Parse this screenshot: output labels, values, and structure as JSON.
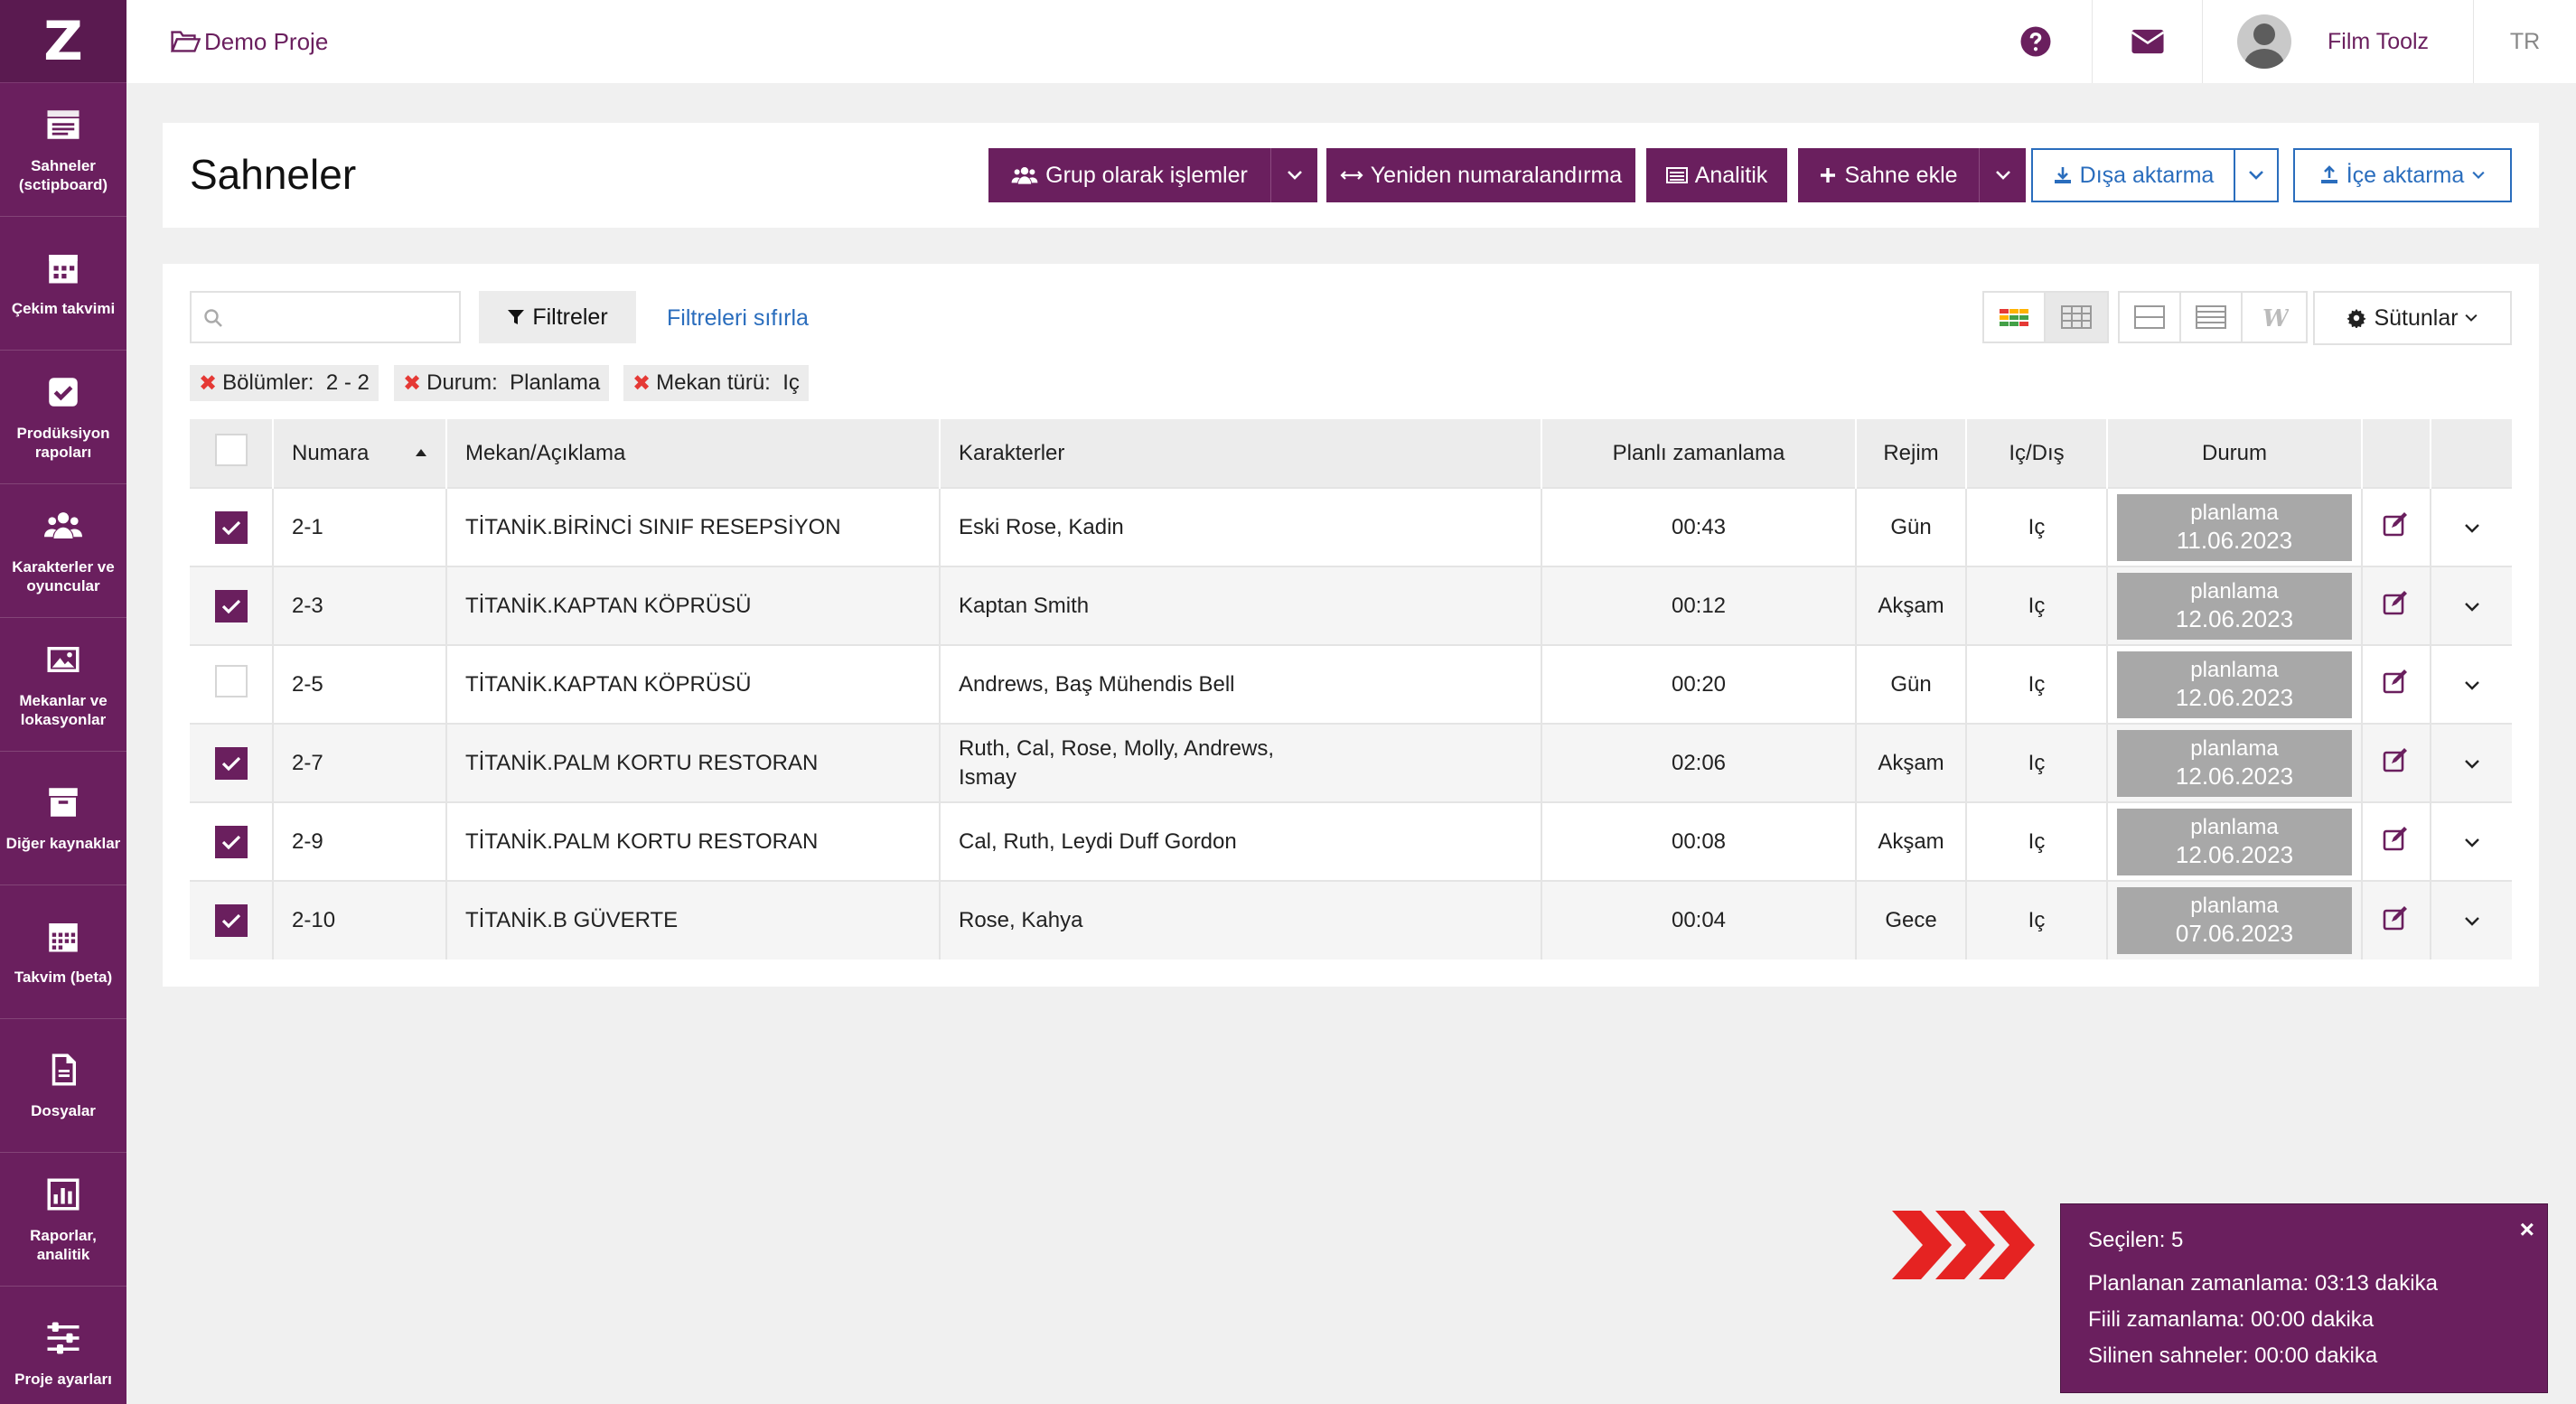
{
  "sidebar": {
    "logo": "Z",
    "items": [
      {
        "label": "Sahneler (sctipboard)",
        "icon": "clapperboard-icon"
      },
      {
        "label": "Çekim takvimi",
        "icon": "calendar-icon"
      },
      {
        "label": "Prodüksiyon rapoları",
        "icon": "checkbox-icon"
      },
      {
        "label": "Karakterler ve oyuncular",
        "icon": "users-icon"
      },
      {
        "label": "Mekanlar ve lokasyonlar",
        "icon": "image-icon"
      },
      {
        "label": "Diğer kaynaklar",
        "icon": "archive-icon"
      },
      {
        "label": "Takvim (beta)",
        "icon": "calendar-grid-icon"
      },
      {
        "label": "Dosyalar",
        "icon": "file-icon"
      },
      {
        "label": "Raporlar, analitik",
        "icon": "bar-chart-icon"
      },
      {
        "label": "Proje ayarları",
        "icon": "sliders-icon"
      }
    ]
  },
  "topbar": {
    "project": "Demo Proje",
    "user": "Film Toolz",
    "lang": "TR"
  },
  "header": {
    "title": "Sahneler",
    "group_ops": "Grup olarak işlemler",
    "renumber": "Yeniden numaralandırma",
    "analytics": "Analitik",
    "add_scene": "Sahne ekle",
    "export": "Dışa aktarma",
    "import": "İçe aktarma"
  },
  "toolbar": {
    "search_placeholder": "",
    "filters": "Filtreler",
    "reset_filters": "Filtreleri sıfırla",
    "columns": "Sütunlar"
  },
  "chips": [
    {
      "label": "Bölümler:",
      "value": "2 - 2"
    },
    {
      "label": "Durum:",
      "value": "Planlama"
    },
    {
      "label": "Mekan türü:",
      "value": "Iç"
    }
  ],
  "table": {
    "headers": {
      "number": "Numara",
      "location": "Mekan/Açıklama",
      "characters": "Karakterler",
      "planned": "Planlı zamanlama",
      "mode": "Rejim",
      "inout": "Iç/Dış",
      "status": "Durum"
    },
    "rows": [
      {
        "checked": true,
        "number": "2-1",
        "location": "TİTANİK.BİRİNCİ SINIF RESEPSİYON",
        "characters": "Eski Rose, Kadin",
        "planned": "00:43",
        "mode": "Gün",
        "inout": "Iç",
        "status": "planlama",
        "date": "11.06.2023"
      },
      {
        "checked": true,
        "number": "2-3",
        "location": "TİTANİK.KAPTAN KÖPRÜSÜ",
        "characters": "Kaptan Smith",
        "planned": "00:12",
        "mode": "Akşam",
        "inout": "Iç",
        "status": "planlama",
        "date": "12.06.2023"
      },
      {
        "checked": false,
        "number": "2-5",
        "location": "TİTANİK.KAPTAN KÖPRÜSÜ",
        "characters": "Andrews, Baş Mühendis Bell",
        "planned": "00:20",
        "mode": "Gün",
        "inout": "Iç",
        "status": "planlama",
        "date": "12.06.2023"
      },
      {
        "checked": true,
        "number": "2-7",
        "location": "TİTANİK.PALM KORTU RESTORAN",
        "characters": "Ruth, Cal, Rose, Molly, Andrews, Ismay",
        "planned": "02:06",
        "mode": "Akşam",
        "inout": "Iç",
        "status": "planlama",
        "date": "12.06.2023"
      },
      {
        "checked": true,
        "number": "2-9",
        "location": "TİTANİK.PALM KORTU RESTORAN",
        "characters": "Cal, Ruth, Leydi Duff Gordon",
        "planned": "00:08",
        "mode": "Akşam",
        "inout": "Iç",
        "status": "planlama",
        "date": "12.06.2023"
      },
      {
        "checked": true,
        "number": "2-10",
        "location": "TİTANİK.B GÜVERTE",
        "characters": "Rose, Kahya",
        "planned": "00:04",
        "mode": "Gece",
        "inout": "Iç",
        "status": "planlama",
        "date": "07.06.2023"
      }
    ]
  },
  "summary": {
    "selected": "Seçilen: 5",
    "planned": "Planlanan zamanlama: 03:13 dakika",
    "actual": "Fiili zamanlama: 00:00 dakika",
    "deleted": "Silinen sahneler: 00:00 dakika",
    "close": "×"
  },
  "colors": {
    "brand": "#6a1f5e",
    "link": "#2a6dbd",
    "status_gray": "#a8a8a8",
    "arrow_red": "#e52322"
  }
}
